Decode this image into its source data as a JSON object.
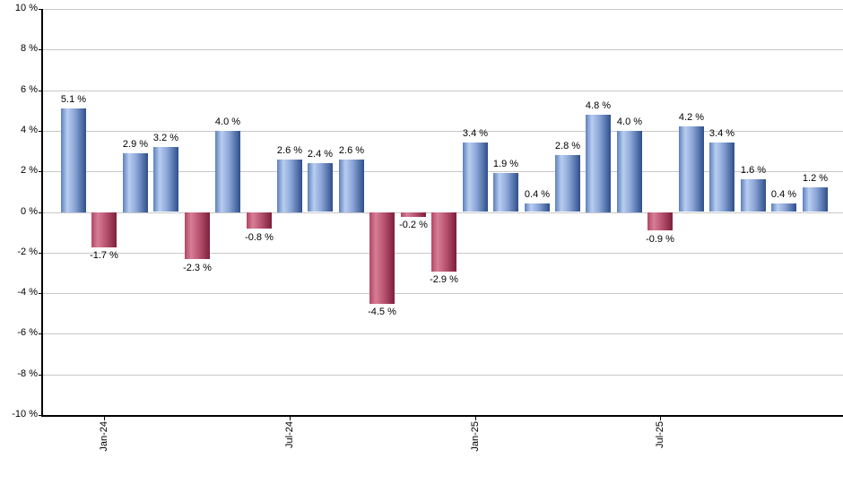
{
  "chart_data": {
    "type": "bar",
    "title": "",
    "xlabel": "",
    "ylabel": "",
    "ylim": [
      -10,
      10
    ],
    "y_tick_step": 2,
    "grid": true,
    "legend": false,
    "y_tick_labels": [
      "10 %",
      "8 %",
      "6 %",
      "4 %",
      "2 %",
      "0 %",
      "-2 %",
      "-4 %",
      "-6 %",
      "-8 %",
      "-10 %"
    ],
    "x_tick_labels": [
      {
        "label": "Jan-24",
        "bar_index": 1
      },
      {
        "label": "Jul-24",
        "bar_index": 7
      },
      {
        "label": "Jan-25",
        "bar_index": 13
      },
      {
        "label": "Jul-25",
        "bar_index": 19
      }
    ],
    "bars": [
      {
        "value": 5.1,
        "label": "5.1 %"
      },
      {
        "value": -1.7,
        "label": "-1.7 %"
      },
      {
        "value": 2.9,
        "label": "2.9 %"
      },
      {
        "value": 3.2,
        "label": "3.2 %"
      },
      {
        "value": -2.3,
        "label": "-2.3 %"
      },
      {
        "value": 4.0,
        "label": "4.0 %"
      },
      {
        "value": -0.8,
        "label": "-0.8 %"
      },
      {
        "value": 2.6,
        "label": "2.6 %"
      },
      {
        "value": 2.4,
        "label": "2.4 %"
      },
      {
        "value": 2.6,
        "label": "2.6 %"
      },
      {
        "value": -4.5,
        "label": "-4.5 %"
      },
      {
        "value": -0.2,
        "label": "-0.2 %"
      },
      {
        "value": -2.9,
        "label": "-2.9 %"
      },
      {
        "value": 3.4,
        "label": "3.4 %"
      },
      {
        "value": 1.9,
        "label": "1.9 %"
      },
      {
        "value": 0.4,
        "label": "0.4 %"
      },
      {
        "value": 2.8,
        "label": "2.8 %"
      },
      {
        "value": 4.8,
        "label": "4.8 %"
      },
      {
        "value": 4.0,
        "label": "4.0 %"
      },
      {
        "value": -0.9,
        "label": "-0.9 %"
      },
      {
        "value": 4.2,
        "label": "4.2 %"
      },
      {
        "value": 3.4,
        "label": "3.4 %"
      },
      {
        "value": 1.6,
        "label": "1.6 %"
      },
      {
        "value": 0.4,
        "label": "0.4 %"
      },
      {
        "value": 1.2,
        "label": "1.2 %"
      }
    ],
    "colors": {
      "positive_gradient": [
        "#5c81bd",
        "#b9cdf0",
        "#8aa5d6",
        "#2f4f8b"
      ],
      "negative_gradient": [
        "#b34566",
        "#d67e95",
        "#bb5674",
        "#7d1f3b"
      ],
      "gridline": "#c8c8c8",
      "axis": "#000000",
      "text": "#000000",
      "background": "#ffffff"
    }
  }
}
